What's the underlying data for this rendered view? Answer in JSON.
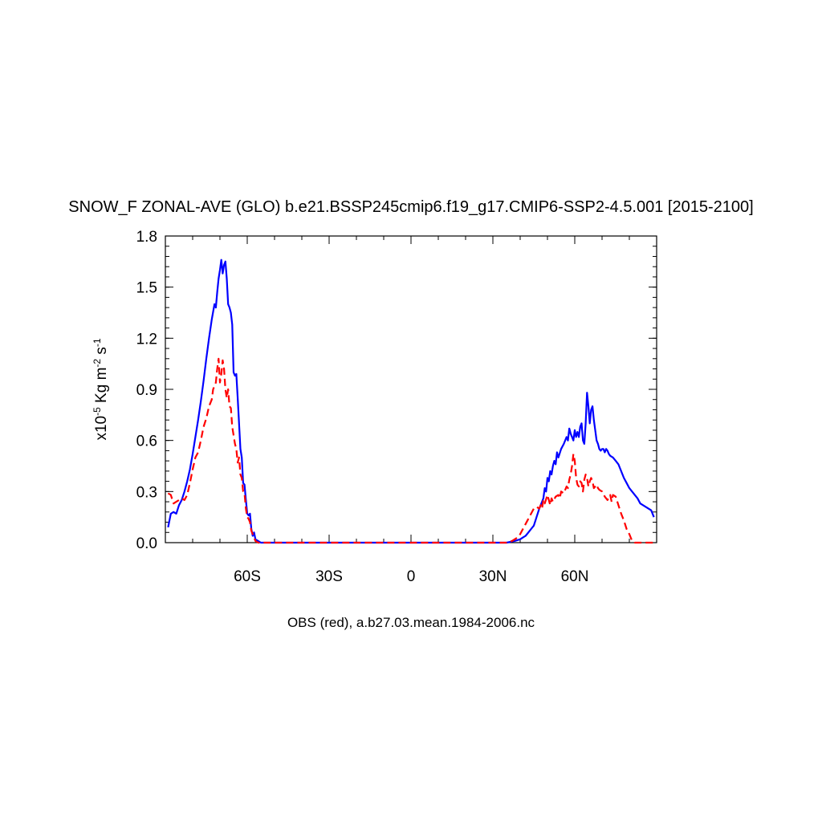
{
  "chart_data": {
    "type": "line",
    "title": "SNOW_F ZONAL-AVE (GLO) b.e21.BSSP245cmip6.f19_g17.CMIP6-SSP2-4.5.001 [2015-2100]",
    "ylabel": {
      "prefix": "x10",
      "exp": "-5",
      "unit": " Kg m",
      "m_exp": "-2",
      "s_part": " s",
      "s_exp": "-1"
    },
    "caption": "OBS (red), a.b27.03.mean.1984-2006.nc",
    "xlim": [
      -90,
      90
    ],
    "ylim": [
      0,
      1.8
    ],
    "x_ticks": [
      {
        "value": -60,
        "label": "60S"
      },
      {
        "value": -30,
        "label": "30S"
      },
      {
        "value": 0,
        "label": "0"
      },
      {
        "value": 30,
        "label": "30N"
      },
      {
        "value": 60,
        "label": "60N"
      }
    ],
    "y_ticks": [
      {
        "value": 0.0,
        "label": "0.0"
      },
      {
        "value": 0.3,
        "label": "0.3"
      },
      {
        "value": 0.6,
        "label": "0.6"
      },
      {
        "value": 0.9,
        "label": "0.9"
      },
      {
        "value": 1.2,
        "label": "1.2"
      },
      {
        "value": 1.5,
        "label": "1.5"
      },
      {
        "value": 1.8,
        "label": "1.8"
      }
    ],
    "series": [
      {
        "color": "#0000ff",
        "dash": "solid",
        "points": [
          [
            -89,
            0.09
          ],
          [
            -88,
            0.17
          ],
          [
            -87,
            0.18
          ],
          [
            -86,
            0.17
          ],
          [
            -85,
            0.22
          ],
          [
            -84,
            0.25
          ],
          [
            -83,
            0.3
          ],
          [
            -82,
            0.36
          ],
          [
            -81,
            0.43
          ],
          [
            -80,
            0.52
          ],
          [
            -79,
            0.62
          ],
          [
            -78,
            0.72
          ],
          [
            -77,
            0.83
          ],
          [
            -76,
            0.95
          ],
          [
            -75,
            1.08
          ],
          [
            -74,
            1.2
          ],
          [
            -73,
            1.31
          ],
          [
            -72,
            1.4
          ],
          [
            -71.5,
            1.38
          ],
          [
            -71,
            1.47
          ],
          [
            -70.5,
            1.55
          ],
          [
            -70,
            1.6
          ],
          [
            -69.5,
            1.66
          ],
          [
            -69,
            1.58
          ],
          [
            -68.5,
            1.63
          ],
          [
            -68,
            1.65
          ],
          [
            -67.5,
            1.55
          ],
          [
            -67,
            1.4
          ],
          [
            -66.5,
            1.38
          ],
          [
            -66,
            1.35
          ],
          [
            -65.5,
            1.28
          ],
          [
            -65,
            1.0
          ],
          [
            -64.5,
            0.98
          ],
          [
            -64,
            0.99
          ],
          [
            -63.5,
            0.85
          ],
          [
            -63,
            0.7
          ],
          [
            -62.5,
            0.55
          ],
          [
            -62,
            0.5
          ],
          [
            -61.5,
            0.35
          ],
          [
            -61,
            0.34
          ],
          [
            -60.5,
            0.25
          ],
          [
            -60,
            0.17
          ],
          [
            -59.5,
            0.16
          ],
          [
            -59,
            0.17
          ],
          [
            -58.5,
            0.08
          ],
          [
            -58,
            0.04
          ],
          [
            -57.5,
            0.06
          ],
          [
            -57,
            0.02
          ],
          [
            -56,
            0.01
          ],
          [
            -55,
            0.0
          ],
          [
            -50,
            0.0
          ],
          [
            -40,
            0.0
          ],
          [
            -30,
            0.0
          ],
          [
            -20,
            0.0
          ],
          [
            -10,
            0.0
          ],
          [
            0,
            0.0
          ],
          [
            10,
            0.0
          ],
          [
            20,
            0.0
          ],
          [
            30,
            0.0
          ],
          [
            35,
            0.0
          ],
          [
            38,
            0.01
          ],
          [
            40,
            0.02
          ],
          [
            41,
            0.03
          ],
          [
            42,
            0.04
          ],
          [
            43,
            0.06
          ],
          [
            44,
            0.08
          ],
          [
            45,
            0.1
          ],
          [
            46,
            0.15
          ],
          [
            47,
            0.2
          ],
          [
            48,
            0.24
          ],
          [
            48.5,
            0.26
          ],
          [
            49,
            0.32
          ],
          [
            49.5,
            0.3
          ],
          [
            50,
            0.38
          ],
          [
            50.5,
            0.36
          ],
          [
            51,
            0.42
          ],
          [
            51.5,
            0.4
          ],
          [
            52,
            0.45
          ],
          [
            52.5,
            0.48
          ],
          [
            53,
            0.46
          ],
          [
            53.5,
            0.53
          ],
          [
            54,
            0.5
          ],
          [
            55,
            0.55
          ],
          [
            56,
            0.58
          ],
          [
            57,
            0.62
          ],
          [
            57.5,
            0.6
          ],
          [
            58,
            0.67
          ],
          [
            58.5,
            0.64
          ],
          [
            59,
            0.62
          ],
          [
            59.5,
            0.6
          ],
          [
            60,
            0.66
          ],
          [
            60.5,
            0.62
          ],
          [
            61,
            0.65
          ],
          [
            61.5,
            0.62
          ],
          [
            62,
            0.68
          ],
          [
            62.5,
            0.7
          ],
          [
            63,
            0.6
          ],
          [
            63.5,
            0.58
          ],
          [
            64,
            0.7
          ],
          [
            64.5,
            0.88
          ],
          [
            65,
            0.8
          ],
          [
            65.5,
            0.7
          ],
          [
            66,
            0.78
          ],
          [
            66.5,
            0.8
          ],
          [
            67,
            0.72
          ],
          [
            67.5,
            0.66
          ],
          [
            68,
            0.6
          ],
          [
            68.5,
            0.58
          ],
          [
            69,
            0.55
          ],
          [
            69.5,
            0.54
          ],
          [
            70,
            0.55
          ],
          [
            70.5,
            0.55
          ],
          [
            71,
            0.53
          ],
          [
            71.5,
            0.55
          ],
          [
            72,
            0.54
          ],
          [
            72.5,
            0.52
          ],
          [
            73,
            0.51
          ],
          [
            74,
            0.5
          ],
          [
            75,
            0.48
          ],
          [
            76,
            0.46
          ],
          [
            77,
            0.42
          ],
          [
            78,
            0.38
          ],
          [
            79,
            0.35
          ],
          [
            80,
            0.32
          ],
          [
            81,
            0.3
          ],
          [
            82,
            0.28
          ],
          [
            83,
            0.26
          ],
          [
            84,
            0.23
          ],
          [
            85,
            0.22
          ],
          [
            86,
            0.21
          ],
          [
            87,
            0.2
          ],
          [
            88,
            0.19
          ],
          [
            89,
            0.15
          ]
        ]
      },
      {
        "color": "#ff0000",
        "dash": "dashed",
        "points": [
          [
            -89,
            0.29
          ],
          [
            -88,
            0.28
          ],
          [
            -87,
            0.23
          ],
          [
            -86,
            0.24
          ],
          [
            -85,
            0.25
          ],
          [
            -84,
            0.26
          ],
          [
            -83,
            0.25
          ],
          [
            -82,
            0.28
          ],
          [
            -81,
            0.35
          ],
          [
            -80,
            0.43
          ],
          [
            -79,
            0.5
          ],
          [
            -78,
            0.53
          ],
          [
            -77,
            0.6
          ],
          [
            -76,
            0.68
          ],
          [
            -75,
            0.73
          ],
          [
            -74,
            0.8
          ],
          [
            -73,
            0.84
          ],
          [
            -72.5,
            0.9
          ],
          [
            -72,
            0.92
          ],
          [
            -71.5,
            0.94
          ],
          [
            -71,
            1.02
          ],
          [
            -70.5,
            1.08
          ],
          [
            -70,
            0.94
          ],
          [
            -69.5,
            0.99
          ],
          [
            -69,
            1.07
          ],
          [
            -68.5,
            1.02
          ],
          [
            -68,
            0.9
          ],
          [
            -67.5,
            0.85
          ],
          [
            -67,
            0.9
          ],
          [
            -66.5,
            0.8
          ],
          [
            -66,
            0.79
          ],
          [
            -65.5,
            0.68
          ],
          [
            -65,
            0.63
          ],
          [
            -64.5,
            0.58
          ],
          [
            -64,
            0.55
          ],
          [
            -63.5,
            0.47
          ],
          [
            -63,
            0.5
          ],
          [
            -62.5,
            0.4
          ],
          [
            -62,
            0.38
          ],
          [
            -61.5,
            0.3
          ],
          [
            -61,
            0.29
          ],
          [
            -60.5,
            0.2
          ],
          [
            -60,
            0.15
          ],
          [
            -59.5,
            0.14
          ],
          [
            -59,
            0.12
          ],
          [
            -58.5,
            0.07
          ],
          [
            -58,
            0.05
          ],
          [
            -57.5,
            0.03
          ],
          [
            -57,
            0.01
          ],
          [
            -56,
            0.0
          ],
          [
            -50,
            0.0
          ],
          [
            -40,
            0.0
          ],
          [
            -30,
            0.0
          ],
          [
            -20,
            0.0
          ],
          [
            -10,
            0.0
          ],
          [
            0,
            0.0
          ],
          [
            10,
            0.0
          ],
          [
            20,
            0.0
          ],
          [
            30,
            0.0
          ],
          [
            35,
            0.0
          ],
          [
            37,
            0.01
          ],
          [
            38,
            0.02
          ],
          [
            39,
            0.03
          ],
          [
            40,
            0.05
          ],
          [
            41,
            0.08
          ],
          [
            42,
            0.11
          ],
          [
            43,
            0.14
          ],
          [
            44,
            0.17
          ],
          [
            45,
            0.2
          ],
          [
            46,
            0.21
          ],
          [
            47,
            0.2
          ],
          [
            47.5,
            0.22
          ],
          [
            48,
            0.2
          ],
          [
            48.5,
            0.25
          ],
          [
            49,
            0.23
          ],
          [
            50,
            0.28
          ],
          [
            51,
            0.22
          ],
          [
            51.5,
            0.26
          ],
          [
            52,
            0.24
          ],
          [
            53,
            0.27
          ],
          [
            54,
            0.28
          ],
          [
            54.5,
            0.26
          ],
          [
            55,
            0.3
          ],
          [
            56,
            0.29
          ],
          [
            57,
            0.33
          ],
          [
            57.5,
            0.32
          ],
          [
            58,
            0.37
          ],
          [
            58.5,
            0.4
          ],
          [
            59,
            0.45
          ],
          [
            59.5,
            0.52
          ],
          [
            60,
            0.48
          ],
          [
            60.5,
            0.38
          ],
          [
            61,
            0.34
          ],
          [
            61.5,
            0.33
          ],
          [
            62,
            0.36
          ],
          [
            62.5,
            0.35
          ],
          [
            63,
            0.3
          ],
          [
            63.5,
            0.37
          ],
          [
            64,
            0.4
          ],
          [
            64.5,
            0.38
          ],
          [
            65,
            0.33
          ],
          [
            65.5,
            0.36
          ],
          [
            66,
            0.38
          ],
          [
            66.5,
            0.36
          ],
          [
            67,
            0.32
          ],
          [
            67.5,
            0.33
          ],
          [
            68,
            0.34
          ],
          [
            68.5,
            0.32
          ],
          [
            69,
            0.31
          ],
          [
            70,
            0.3
          ],
          [
            71,
            0.27
          ],
          [
            72,
            0.25
          ],
          [
            73,
            0.28
          ],
          [
            73.5,
            0.24
          ],
          [
            74,
            0.28
          ],
          [
            75,
            0.27
          ],
          [
            76,
            0.22
          ],
          [
            77,
            0.17
          ],
          [
            78,
            0.13
          ],
          [
            79,
            0.08
          ],
          [
            80,
            0.05
          ],
          [
            81,
            0.01
          ],
          [
            82,
            0.0
          ],
          [
            85,
            0.0
          ],
          [
            89,
            0.0
          ]
        ]
      }
    ]
  }
}
